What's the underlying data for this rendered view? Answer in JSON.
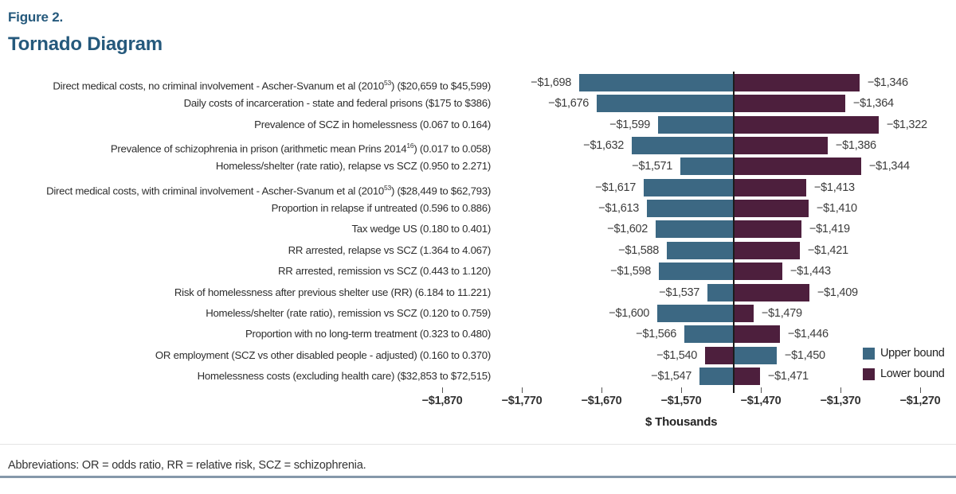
{
  "figure": {
    "label": "Figure 2.",
    "title": "Tornado Diagram"
  },
  "footer": {
    "abbreviations": "Abbreviations: OR = odds ratio, RR = relative risk, SCZ = schizophrenia."
  },
  "chart_data": {
    "type": "bar",
    "variant": "tornado",
    "title": "Tornado Diagram",
    "xlabel": "$ Thousands",
    "xlim": [
      -1870,
      -1270
    ],
    "baseline_value": -1504,
    "grid": false,
    "legend_position": "bottom-right",
    "x_ticks": [
      {
        "value": -1870,
        "label": "−$1,870"
      },
      {
        "value": -1770,
        "label": "−$1,770"
      },
      {
        "value": -1670,
        "label": "−$1,670"
      },
      {
        "value": -1570,
        "label": "−$1,570"
      },
      {
        "value": -1470,
        "label": "−$1,470"
      },
      {
        "value": -1370,
        "label": "−$1,370"
      },
      {
        "value": -1270,
        "label": "−$1,270"
      }
    ],
    "legend": [
      {
        "series": "upper",
        "label": "Upper bound"
      },
      {
        "series": "lower",
        "label": "Lower bound"
      }
    ],
    "colors": {
      "upper": "#3C6883",
      "lower": "#4D1F3D",
      "baseline": "#1C1C1C",
      "title": "#25597C",
      "bottom_rule": "#8598AA"
    },
    "rows": [
      {
        "label_parts": [
          {
            "text": "Direct medical costs, no criminal involvement - Ascher-Svanum et al (2010"
          },
          {
            "sup": "53"
          },
          {
            "text": ") ($20,659 to $45,599)"
          }
        ],
        "upper": {
          "value": -1698,
          "label": "−$1,698"
        },
        "lower": {
          "value": -1346,
          "label": "−$1,346"
        }
      },
      {
        "label_parts": [
          {
            "text": "Daily costs of incarceration - state and federal prisons ($175 to $386)"
          }
        ],
        "upper": {
          "value": -1676,
          "label": "−$1,676"
        },
        "lower": {
          "value": -1364,
          "label": "−$1,364"
        }
      },
      {
        "label_parts": [
          {
            "text": "Prevalence of SCZ in homelessness (0.067 to 0.164)"
          }
        ],
        "upper": {
          "value": -1599,
          "label": "−$1,599"
        },
        "lower": {
          "value": -1322,
          "label": "−$1,322"
        }
      },
      {
        "label_parts": [
          {
            "text": "Prevalence of schizophrenia in prison (arithmetic mean Prins 2014"
          },
          {
            "sup": "16"
          },
          {
            "text": ") (0.017 to 0.058)"
          }
        ],
        "upper": {
          "value": -1632,
          "label": "−$1,632"
        },
        "lower": {
          "value": -1386,
          "label": "−$1,386"
        }
      },
      {
        "label_parts": [
          {
            "text": "Homeless/shelter (rate ratio), relapse vs SCZ  (0.950 to 2.271)"
          }
        ],
        "upper": {
          "value": -1571,
          "label": "−$1,571"
        },
        "lower": {
          "value": -1344,
          "label": "−$1,344"
        }
      },
      {
        "label_parts": [
          {
            "text": "Direct medical costs, with criminal involvement - Ascher-Svanum et al (2010"
          },
          {
            "sup": "53"
          },
          {
            "text": ") ($28,449 to $62,793)"
          }
        ],
        "upper": {
          "value": -1617,
          "label": "−$1,617"
        },
        "lower": {
          "value": -1413,
          "label": "−$1,413"
        }
      },
      {
        "label_parts": [
          {
            "text": "Proportion in relapse if untreated (0.596 to 0.886)"
          }
        ],
        "upper": {
          "value": -1613,
          "label": "−$1,613"
        },
        "lower": {
          "value": -1410,
          "label": "−$1,410"
        }
      },
      {
        "label_parts": [
          {
            "text": "Tax wedge US (0.180 to 0.401)"
          }
        ],
        "upper": {
          "value": -1602,
          "label": "−$1,602"
        },
        "lower": {
          "value": -1419,
          "label": "−$1,419"
        }
      },
      {
        "label_parts": [
          {
            "text": "RR arrested, relapse vs SCZ (1.364 to 4.067)"
          }
        ],
        "upper": {
          "value": -1588,
          "label": "−$1,588"
        },
        "lower": {
          "value": -1421,
          "label": "−$1,421"
        }
      },
      {
        "label_parts": [
          {
            "text": "RR arrested, remission vs SCZ (0.443 to 1.120)"
          }
        ],
        "upper": {
          "value": -1598,
          "label": "−$1,598"
        },
        "lower": {
          "value": -1443,
          "label": "−$1,443"
        }
      },
      {
        "label_parts": [
          {
            "text": "Risk of homelessness after previous shelter use (RR) (6.184 to 11.221)"
          }
        ],
        "upper": {
          "value": -1537,
          "label": "−$1,537"
        },
        "lower": {
          "value": -1409,
          "label": "−$1,409"
        }
      },
      {
        "label_parts": [
          {
            "text": "Homeless/shelter (rate ratio), remission vs SCZ (0.120 to 0.759)"
          }
        ],
        "upper": {
          "value": -1600,
          "label": "−$1,600"
        },
        "lower": {
          "value": -1479,
          "label": "−$1,479"
        }
      },
      {
        "label_parts": [
          {
            "text": "Proportion with no long-term treatment (0.323 to 0.480)"
          }
        ],
        "upper": {
          "value": -1566,
          "label": "−$1,566"
        },
        "lower": {
          "value": -1446,
          "label": "−$1,446"
        }
      },
      {
        "label_parts": [
          {
            "text": "OR employment (SCZ vs other disabled people - adjusted) (0.160 to 0.370)"
          }
        ],
        "upper": {
          "value": -1450,
          "label": "−$1,450"
        },
        "lower": {
          "value": -1540,
          "label": "−$1,540"
        }
      },
      {
        "label_parts": [
          {
            "text": "Homelessness costs (excluding health care) ($32,853 to $72,515)"
          }
        ],
        "upper": {
          "value": -1547,
          "label": "−$1,547"
        },
        "lower": {
          "value": -1471,
          "label": "−$1,471"
        }
      }
    ]
  }
}
